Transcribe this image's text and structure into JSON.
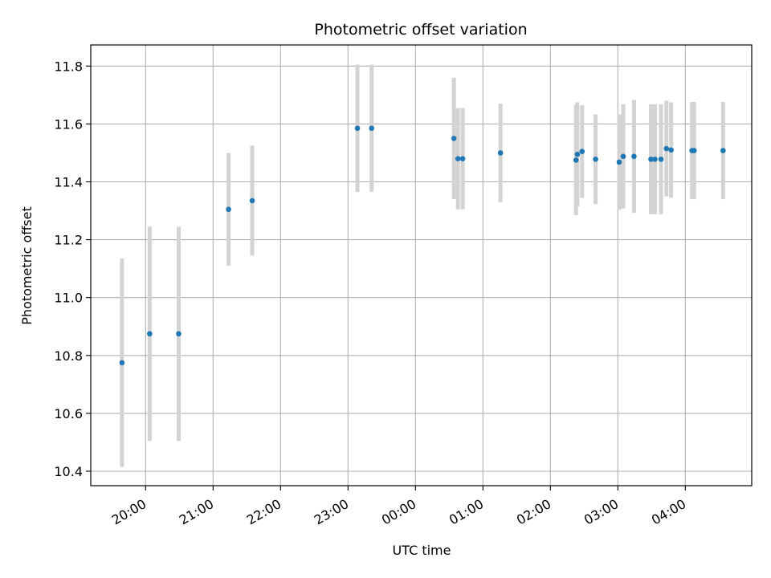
{
  "chart_data": {
    "type": "scatter",
    "title": "Photometric offset variation",
    "xlabel": "UTC time",
    "ylabel": "Photometric offset",
    "x_unit": "hours since 00:00 UTC (axis shows clock time)",
    "xlim": [
      -4.8,
      5.0
    ],
    "ylim": [
      10.35,
      11.875
    ],
    "grid": true,
    "x_tick_labels": [
      "20:00",
      "21:00",
      "22:00",
      "23:00",
      "00:00",
      "01:00",
      "02:00",
      "03:00",
      "04:00"
    ],
    "x_tick_values": [
      -4,
      -3,
      -2,
      -1,
      0,
      1,
      2,
      3,
      4
    ],
    "y_tick_labels": [
      "10.4",
      "10.6",
      "10.8",
      "11.0",
      "11.2",
      "11.4",
      "11.6",
      "11.8"
    ],
    "y_tick_values": [
      10.4,
      10.6,
      10.8,
      11.0,
      11.2,
      11.4,
      11.6,
      11.8
    ],
    "series": [
      {
        "marker_color": "#1f77b4",
        "errorbar_color": "#d3d3d3",
        "points": [
          {
            "x": -4.35,
            "y": 10.775,
            "err": 0.36
          },
          {
            "x": -3.94,
            "y": 10.875,
            "err": 0.37
          },
          {
            "x": -3.51,
            "y": 10.875,
            "err": 0.37
          },
          {
            "x": -2.77,
            "y": 11.305,
            "err": 0.195
          },
          {
            "x": -2.42,
            "y": 11.335,
            "err": 0.19
          },
          {
            "x": -0.86,
            "y": 11.585,
            "err": 0.22
          },
          {
            "x": -0.65,
            "y": 11.585,
            "err": 0.22
          },
          {
            "x": 0.57,
            "y": 11.55,
            "err": 0.21
          },
          {
            "x": 0.63,
            "y": 11.48,
            "err": 0.175
          },
          {
            "x": 0.7,
            "y": 11.48,
            "err": 0.175
          },
          {
            "x": 1.26,
            "y": 11.5,
            "err": 0.17
          },
          {
            "x": 2.38,
            "y": 11.475,
            "err": 0.19
          },
          {
            "x": 2.4,
            "y": 11.495,
            "err": 0.18
          },
          {
            "x": 2.47,
            "y": 11.505,
            "err": 0.16
          },
          {
            "x": 2.67,
            "y": 11.478,
            "err": 0.155
          },
          {
            "x": 3.02,
            "y": 11.468,
            "err": 0.165
          },
          {
            "x": 3.08,
            "y": 11.488,
            "err": 0.18
          },
          {
            "x": 3.24,
            "y": 11.488,
            "err": 0.195
          },
          {
            "x": 3.49,
            "y": 11.478,
            "err": 0.19
          },
          {
            "x": 3.55,
            "y": 11.478,
            "err": 0.19
          },
          {
            "x": 3.64,
            "y": 11.478,
            "err": 0.19
          },
          {
            "x": 3.72,
            "y": 11.515,
            "err": 0.165
          },
          {
            "x": 3.79,
            "y": 11.51,
            "err": 0.165
          },
          {
            "x": 4.1,
            "y": 11.508,
            "err": 0.168
          },
          {
            "x": 4.13,
            "y": 11.508,
            "err": 0.168
          },
          {
            "x": 4.56,
            "y": 11.508,
            "err": 0.168
          }
        ]
      }
    ]
  }
}
